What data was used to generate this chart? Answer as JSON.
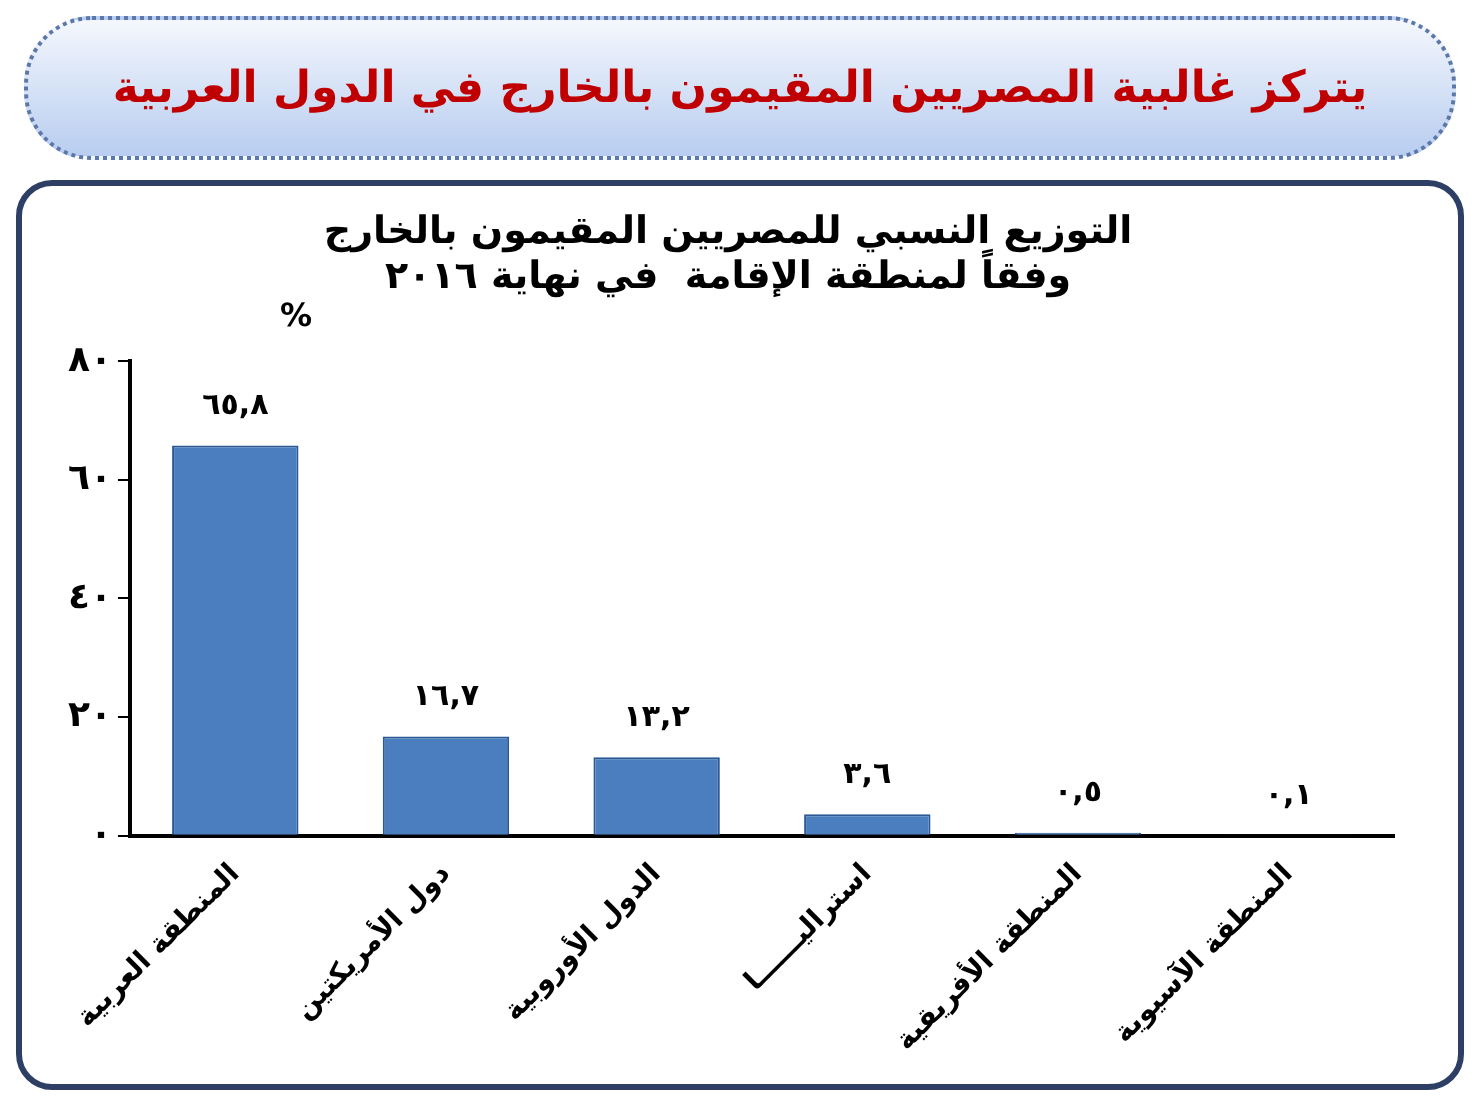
{
  "chart_data": {
    "type": "bar",
    "title": "يتركز غالبية المصريين المقيمون  بالخارج في الدول العربية",
    "subtitle": "التوزيع النسبي للمصريين المقيمون بالخارج\nوفقاً لمنطقة الإقامة  في نهاية ٢٠١٦",
    "ylabel": "%",
    "categories": [
      "المنطقة العربية",
      "دول الأمريكتين",
      "الدول الأوروبية",
      "استراليــــــا",
      "المنطقة الأفريقية",
      "المنطقة الآسيوية"
    ],
    "values": [
      65.8,
      16.7,
      13.2,
      3.6,
      0.5,
      0.1
    ],
    "value_labels": [
      "٦٥,٨",
      "١٦,٧",
      "١٣,٢",
      "٣,٦",
      "٠,٥",
      "٠,١"
    ],
    "color": "#4a7ebf",
    "ylim": [
      0,
      80
    ],
    "yticks": [
      {
        "value": 0,
        "label": "٠"
      },
      {
        "value": 20,
        "label": "٢٠"
      },
      {
        "value": 40,
        "label": "٤٠"
      },
      {
        "value": 60,
        "label": "٦٠"
      },
      {
        "value": 80,
        "label": "٨٠"
      }
    ]
  }
}
